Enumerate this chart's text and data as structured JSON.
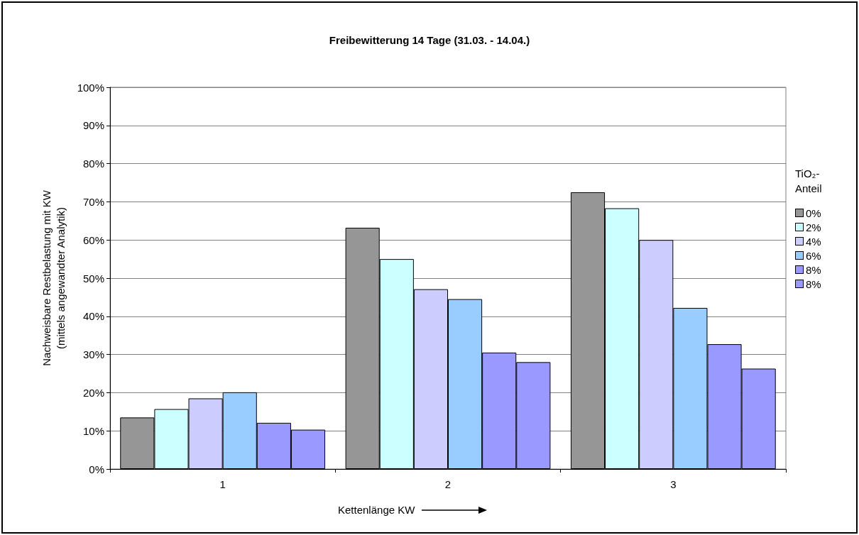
{
  "chart_data": {
    "type": "bar",
    "title": "Freibewitterung 14 Tage (31.03. - 14.04.)",
    "xlabel": "Kettenlänge KW",
    "ylabel": "Nachweisbare Restbelastung mit KW\n(mittels angewandter Analytik)",
    "legend_title": "TiO₂-Anteil",
    "legend": "right",
    "categories": [
      "1",
      "2",
      "3"
    ],
    "series": [
      {
        "name": "0%",
        "color": "#969696",
        "values": [
          13.5,
          63.2,
          72.5
        ]
      },
      {
        "name": "2%",
        "color": "#ccffff",
        "values": [
          15.7,
          55.0,
          68.3
        ]
      },
      {
        "name": "4%",
        "color": "#ccccff",
        "values": [
          18.5,
          47.1,
          60.0
        ]
      },
      {
        "name": "6%",
        "color": "#99ccff",
        "values": [
          20.1,
          44.5,
          42.2
        ]
      },
      {
        "name": "8%",
        "color": "#9999ff",
        "values": [
          12.1,
          30.5,
          32.7
        ]
      },
      {
        "name": "8%",
        "color": "#9999ff",
        "values": [
          10.3,
          28.0,
          26.3
        ]
      }
    ],
    "ylim": [
      0,
      100
    ],
    "yticks": [
      {
        "value": 0,
        "label": "0%"
      },
      {
        "value": 10,
        "label": "10%"
      },
      {
        "value": 20,
        "label": "20%"
      },
      {
        "value": 30,
        "label": "30%"
      },
      {
        "value": 40,
        "label": "40%"
      },
      {
        "value": 50,
        "label": "50%"
      },
      {
        "value": 60,
        "label": "60%"
      },
      {
        "value": 70,
        "label": "70%"
      },
      {
        "value": 80,
        "label": "80%"
      },
      {
        "value": 90,
        "label": "90%"
      },
      {
        "value": 100,
        "label": "100%"
      }
    ],
    "grid": "y"
  }
}
